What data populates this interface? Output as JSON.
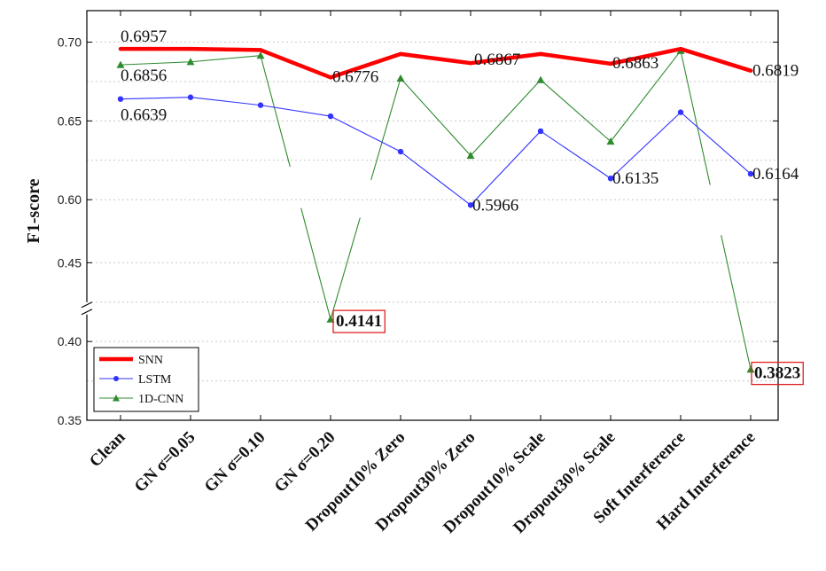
{
  "chart_data": {
    "type": "line",
    "ylabel": "F1-score",
    "xlabel": "",
    "categories": [
      "Clean",
      "GN σ=0.05",
      "GN σ=0.10",
      "GN σ=0.20",
      "Dropout10% Zero",
      "Dropout30% Zero",
      "Dropout10% Scale",
      "Dropout30% Scale",
      "Soft Interference",
      "Hard Interference"
    ],
    "y_axis": {
      "broken": true,
      "lower_segment": [
        0.35,
        0.48
      ],
      "upper_segment": [
        0.59,
        0.72
      ],
      "ticks": [
        "0.35",
        "0.40",
        "0.45",
        "0.60",
        "0.65",
        "0.70"
      ]
    },
    "grid": "dashed horizontal",
    "legend_position": "bottom-left",
    "series": [
      {
        "name": "SNN",
        "color": "#ff0000",
        "marker": "none",
        "values": [
          0.6957,
          0.6957,
          0.695,
          0.6776,
          0.6925,
          0.6867,
          0.6925,
          0.6863,
          0.6957,
          0.6819
        ]
      },
      {
        "name": "LSTM",
        "color": "#3333ff",
        "marker": "circle",
        "values": [
          0.6639,
          0.665,
          0.66,
          0.653,
          0.6305,
          0.5966,
          0.6435,
          0.6135,
          0.6555,
          0.6164
        ]
      },
      {
        "name": "1D-CNN",
        "color": "#2e8b2e",
        "marker": "triangle",
        "values": [
          0.6856,
          0.6875,
          0.6915,
          0.4141,
          0.677,
          0.628,
          0.676,
          0.637,
          0.6945,
          0.3823
        ]
      }
    ],
    "annotations": [
      {
        "series": "SNN",
        "index": 0,
        "text": "0.6957",
        "boxed": false
      },
      {
        "series": "1D-CNN",
        "index": 0,
        "text": "0.6856",
        "boxed": false
      },
      {
        "series": "LSTM",
        "index": 0,
        "text": "0.6639",
        "boxed": false
      },
      {
        "series": "SNN",
        "index": 3,
        "text": "0.6776",
        "boxed": false
      },
      {
        "series": "1D-CNN",
        "index": 3,
        "text": "0.4141",
        "boxed": true
      },
      {
        "series": "SNN",
        "index": 5,
        "text": "0.6867",
        "boxed": false
      },
      {
        "series": "LSTM",
        "index": 5,
        "text": "0.5966",
        "boxed": false
      },
      {
        "series": "SNN",
        "index": 7,
        "text": "0.6863",
        "boxed": false
      },
      {
        "series": "LSTM",
        "index": 7,
        "text": "0.6135",
        "boxed": false
      },
      {
        "series": "SNN",
        "index": 9,
        "text": "0.6819",
        "boxed": false
      },
      {
        "series": "LSTM",
        "index": 9,
        "text": "0.6164",
        "boxed": false
      },
      {
        "series": "1D-CNN",
        "index": 9,
        "text": "0.3823",
        "boxed": true
      }
    ]
  }
}
